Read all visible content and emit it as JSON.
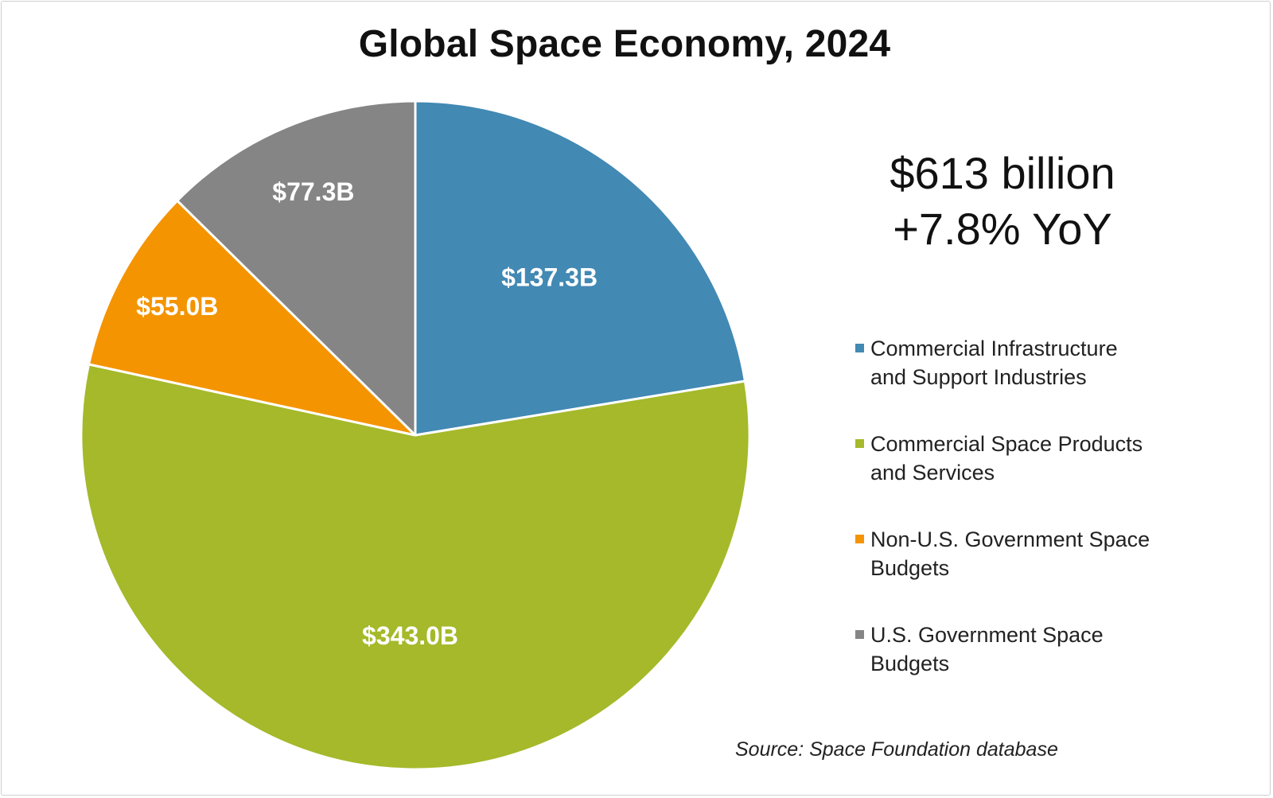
{
  "chart_data": {
    "type": "pie",
    "title": "Global Space Economy, 2024",
    "total_label": "$613 billion",
    "growth_label": "+7.8% YoY",
    "unit": "billions USD",
    "slices": [
      {
        "name": "Commercial Infrastructure and Support Industries",
        "label_lines": [
          "Commercial Infrastructure",
          "and Support Industries"
        ],
        "value": 137.3,
        "value_label": "$137.3B",
        "color": "#4289b4"
      },
      {
        "name": "Commercial Space Products and Services",
        "label_lines": [
          "Commercial Space Products",
          "and Services"
        ],
        "value": 343.0,
        "value_label": "$343.0B",
        "color": "#a5b92a"
      },
      {
        "name": "Non-U.S. Government Space Budgets",
        "label_lines": [
          "Non-U.S. Government Space",
          "Budgets"
        ],
        "value": 55.0,
        "value_label": "$55.0B",
        "color": "#f49400"
      },
      {
        "name": "U.S. Government Space Budgets",
        "label_lines": [
          "U.S. Government Space",
          "Budgets"
        ],
        "value": 77.3,
        "value_label": "$77.3B",
        "color": "#858585"
      }
    ],
    "start_angle": "12 o'clock",
    "direction": "clockwise",
    "legend_position": "right",
    "source": "Source: Space Foundation database"
  }
}
